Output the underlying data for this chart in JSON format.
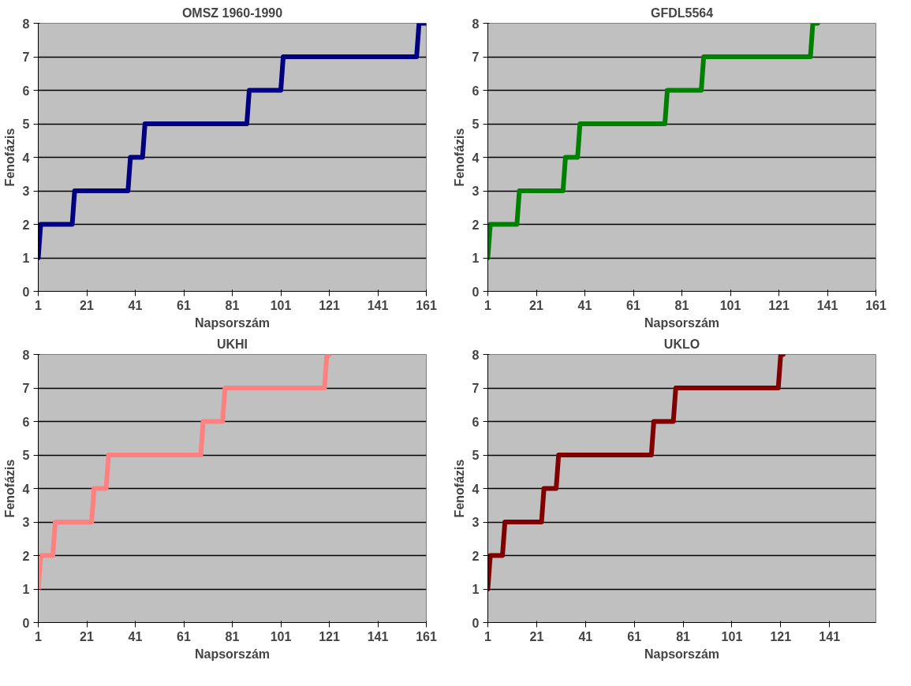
{
  "chart_data": [
    {
      "type": "line",
      "title": "OMSZ 1960-1990",
      "xlabel": "Napsorszám",
      "ylabel": "Fenofázis",
      "xlim": [
        1,
        161
      ],
      "xticks": [
        1,
        21,
        41,
        61,
        81,
        101,
        121,
        141,
        161
      ],
      "ylim": [
        0,
        8
      ],
      "yticks": [
        0,
        1,
        2,
        3,
        4,
        5,
        6,
        7,
        8
      ],
      "grid": "y",
      "line_style": "solid",
      "series": [
        {
          "color": "#000080",
          "x": [
            1,
            2,
            15,
            16,
            38,
            39,
            44,
            45,
            87,
            88,
            101,
            102,
            157,
            158,
            161
          ],
          "values": [
            1,
            2,
            2,
            3,
            3,
            4,
            4,
            5,
            5,
            6,
            6,
            7,
            7,
            8,
            8
          ]
        }
      ]
    },
    {
      "type": "line",
      "title": "GFDL5564",
      "xlabel": "Napsorszám",
      "ylabel": "Fenofázis",
      "xlim": [
        1,
        161
      ],
      "xticks": [
        1,
        21,
        41,
        61,
        81,
        101,
        121,
        141,
        161
      ],
      "ylim": [
        0,
        8
      ],
      "yticks": [
        0,
        1,
        2,
        3,
        4,
        5,
        6,
        7,
        8
      ],
      "grid": "y",
      "line_style": "solid",
      "series": [
        {
          "color": "#008000",
          "x": [
            1,
            2,
            13,
            14,
            32,
            33,
            38,
            39,
            74,
            75,
            89,
            90,
            134,
            135,
            137
          ],
          "values": [
            1,
            2,
            2,
            3,
            3,
            4,
            4,
            5,
            5,
            6,
            6,
            7,
            7,
            8,
            8
          ]
        }
      ]
    },
    {
      "type": "line",
      "title": "UKHI",
      "xlabel": "Napsorszám",
      "ylabel": "Fenofázis",
      "xlim": [
        1,
        161
      ],
      "xticks": [
        1,
        21,
        41,
        61,
        81,
        101,
        121,
        141,
        161
      ],
      "ylim": [
        0,
        8
      ],
      "yticks": [
        0,
        1,
        2,
        3,
        4,
        5,
        6,
        7,
        8
      ],
      "grid": "y",
      "line_style": "solid",
      "series": [
        {
          "color": "#ff8080",
          "x": [
            1,
            2,
            7,
            8,
            23,
            24,
            29,
            30,
            68,
            69,
            77,
            78,
            119,
            120,
            121
          ],
          "values": [
            1,
            2,
            2,
            3,
            3,
            4,
            4,
            5,
            5,
            6,
            6,
            7,
            7,
            8,
            8
          ]
        }
      ]
    },
    {
      "type": "line",
      "title": "UKLO",
      "xlabel": "Napsorszám",
      "ylabel": "Fenofázis",
      "xlim": [
        1,
        160
      ],
      "xticks": [
        1,
        21,
        41,
        61,
        81,
        101,
        121,
        141
      ],
      "ylim": [
        0,
        8
      ],
      "yticks": [
        0,
        1,
        2,
        3,
        4,
        5,
        6,
        7,
        8
      ],
      "grid": "y",
      "line_style": "solid",
      "series": [
        {
          "color": "#800000",
          "x": [
            1,
            2,
            7,
            8,
            23,
            24,
            29,
            30,
            68,
            69,
            77,
            78,
            120,
            121,
            122
          ],
          "values": [
            1,
            2,
            2,
            3,
            3,
            4,
            4,
            5,
            5,
            6,
            6,
            7,
            7,
            8,
            8
          ]
        }
      ]
    }
  ]
}
